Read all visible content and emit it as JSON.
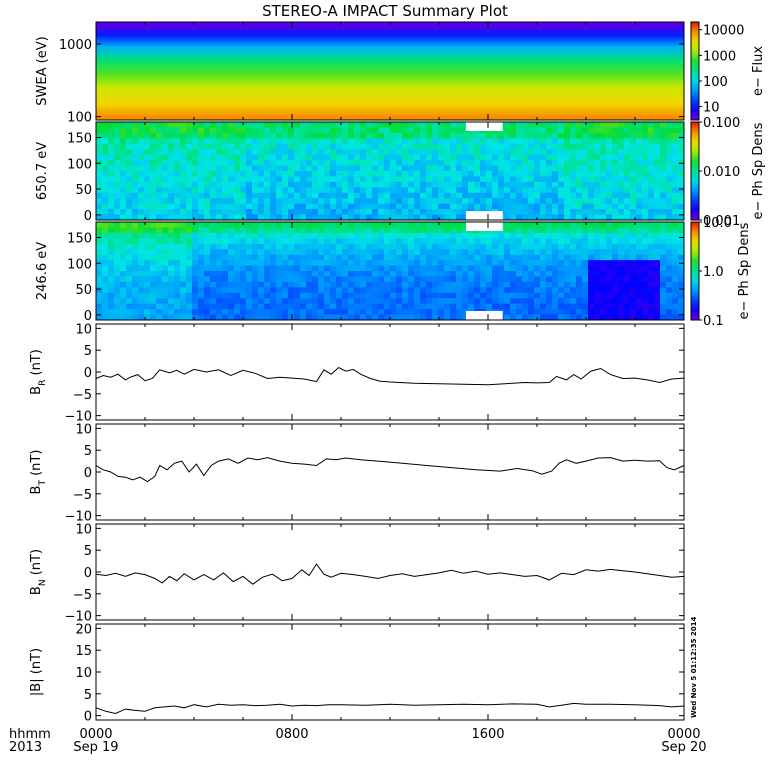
{
  "title": "STEREO-A IMPACT Summary Plot",
  "footer": {
    "row1_label": "hhmm",
    "row2_label": "2013",
    "xticks": [
      {
        "t": 0,
        "top": "0000",
        "bottom": "Sep 19"
      },
      {
        "t": 8,
        "top": "0800",
        "bottom": ""
      },
      {
        "t": 16,
        "top": "1600",
        "bottom": ""
      },
      {
        "t": 24,
        "top": "0000",
        "bottom": "Sep 20"
      }
    ],
    "timestamp": "Wed Nov 5 01:12:35 2014"
  },
  "colors": {
    "frame": "#000000",
    "trace": "#000000",
    "gap": "#ffffff"
  },
  "chart_data": [
    {
      "id": "swea",
      "type": "heatmap",
      "ylabel": "SWEA (eV)",
      "yscale": "log",
      "ylim": [
        90,
        2000
      ],
      "yticks": [
        {
          "v": 1000,
          "label": "1000"
        },
        {
          "v": 100,
          "label": "100"
        }
      ],
      "colorbar": {
        "label": "e− Flux",
        "scale": "log",
        "range": [
          3,
          20000
        ],
        "ticks": [
          {
            "v": 10000,
            "label": "10000"
          },
          {
            "v": 1000,
            "label": "1000"
          },
          {
            "v": 100,
            "label": "100"
          },
          {
            "v": 10,
            "label": "10"
          }
        ]
      },
      "description_bands_ev_to_flux": [
        [
          1800,
          4
        ],
        [
          1300,
          12
        ],
        [
          900,
          60
        ],
        [
          600,
          300
        ],
        [
          400,
          800
        ],
        [
          250,
          2000
        ],
        [
          150,
          4000
        ],
        [
          100,
          8000
        ]
      ]
    },
    {
      "id": "pad650",
      "type": "heatmap",
      "ylabel": "650.7 eV",
      "yscale": "linear",
      "ylim": [
        -10,
        180
      ],
      "yticks": [
        {
          "v": 150,
          "label": "150"
        },
        {
          "v": 100,
          "label": "100"
        },
        {
          "v": 50,
          "label": "50"
        },
        {
          "v": 0,
          "label": "0"
        }
      ],
      "colorbar": {
        "label": "e− Ph Sp Dens",
        "scale": "log",
        "range": [
          0.001,
          0.1
        ],
        "ticks": [
          {
            "v": 0.1,
            "label": "0.100"
          },
          {
            "v": 0.01,
            "label": "0.010"
          },
          {
            "v": 0.001,
            "label": "0.001"
          }
        ]
      },
      "gaps_hours": [
        [
          15.1,
          16.6
        ]
      ]
    },
    {
      "id": "pad246",
      "type": "heatmap",
      "ylabel": "246.6 eV",
      "yscale": "linear",
      "ylim": [
        -10,
        180
      ],
      "yticks": [
        {
          "v": 150,
          "label": "150"
        },
        {
          "v": 100,
          "label": "100"
        },
        {
          "v": 50,
          "label": "50"
        },
        {
          "v": 0,
          "label": "0"
        }
      ],
      "colorbar": {
        "label": "e− Ph Sp Dens",
        "scale": "log",
        "range": [
          0.1,
          10.0
        ],
        "ticks": [
          {
            "v": 10,
            "label": "10.0"
          },
          {
            "v": 1,
            "label": "1.0"
          },
          {
            "v": 0.1,
            "label": "0.1"
          }
        ]
      },
      "gaps_hours": [
        [
          15.1,
          16.6
        ]
      ]
    },
    {
      "id": "br",
      "type": "line",
      "ylabel": "B_R (nT)",
      "ylabel_main": "B",
      "ylabel_sub": "R",
      "ylabel_unit": "(nT)",
      "ylim": [
        -11,
        11
      ],
      "yticks": [
        {
          "v": 10,
          "label": "10"
        },
        {
          "v": 5,
          "label": "5"
        },
        {
          "v": 0,
          "label": "0"
        },
        {
          "v": -5,
          "label": "−5"
        },
        {
          "v": -10,
          "label": "−10"
        }
      ],
      "x": [
        0,
        0.3,
        0.6,
        0.9,
        1.2,
        1.4,
        1.7,
        2.0,
        2.3,
        2.6,
        3.0,
        3.3,
        3.6,
        4.0,
        4.5,
        5.0,
        5.5,
        6.0,
        6.5,
        7.0,
        7.5,
        8.0,
        8.5,
        9.0,
        9.3,
        9.6,
        9.9,
        10.2,
        10.5,
        10.8,
        11.2,
        11.6,
        12.0,
        13.0,
        14.0,
        15.0,
        16.0,
        17.0,
        17.5,
        18.0,
        18.5,
        18.8,
        19.2,
        19.5,
        19.8,
        20.2,
        20.6,
        21.0,
        21.5,
        22.0,
        22.5,
        23.0,
        23.5,
        24.0
      ],
      "y": [
        -1.5,
        -0.8,
        -1.2,
        -0.5,
        -1.8,
        -1.2,
        -0.6,
        -2.0,
        -1.5,
        0.5,
        -0.2,
        0.4,
        -0.5,
        0.6,
        0.0,
        0.5,
        -0.8,
        0.4,
        -0.3,
        -1.5,
        -1.2,
        -1.4,
        -1.6,
        -2.2,
        0.5,
        -0.5,
        1.0,
        0.2,
        0.6,
        -0.5,
        -1.5,
        -2.1,
        -2.3,
        -2.6,
        -2.7,
        -2.8,
        -2.9,
        -2.6,
        -2.4,
        -2.5,
        -2.4,
        -1.0,
        -1.8,
        -0.6,
        -1.6,
        0.2,
        0.8,
        -0.6,
        -1.5,
        -1.4,
        -1.8,
        -2.4,
        -1.6,
        -1.4
      ]
    },
    {
      "id": "bt",
      "type": "line",
      "ylabel": "B_T (nT)",
      "ylabel_main": "B",
      "ylabel_sub": "T",
      "ylabel_unit": "(nT)",
      "ylim": [
        -11,
        11
      ],
      "yticks": [
        {
          "v": 10,
          "label": "10"
        },
        {
          "v": 5,
          "label": "5"
        },
        {
          "v": 0,
          "label": "0"
        },
        {
          "v": -5,
          "label": "−5"
        },
        {
          "v": -10,
          "label": "−10"
        }
      ],
      "x": [
        0,
        0.3,
        0.6,
        0.9,
        1.2,
        1.5,
        1.8,
        2.1,
        2.4,
        2.6,
        2.9,
        3.2,
        3.5,
        3.8,
        4.1,
        4.4,
        4.7,
        5.0,
        5.4,
        5.8,
        6.2,
        6.6,
        7.0,
        7.5,
        8.0,
        8.5,
        9.0,
        9.4,
        9.8,
        10.2,
        10.8,
        11.5,
        12.5,
        13.5,
        14.5,
        15.5,
        16.5,
        17.2,
        17.8,
        18.2,
        18.6,
        18.9,
        19.2,
        19.6,
        20.0,
        20.5,
        21.0,
        21.5,
        22.0,
        22.5,
        23.0,
        23.3,
        23.6,
        24.0
      ],
      "y": [
        1.5,
        0.5,
        0.0,
        -1.0,
        -1.2,
        -1.8,
        -1.2,
        -2.2,
        -1.0,
        1.5,
        0.5,
        2.0,
        2.5,
        0.0,
        1.8,
        -0.8,
        1.5,
        2.5,
        3.0,
        2.0,
        3.2,
        2.8,
        3.3,
        2.5,
        2.0,
        1.8,
        1.5,
        3.0,
        2.8,
        3.2,
        2.8,
        2.5,
        2.0,
        1.5,
        1.0,
        0.5,
        0.2,
        0.8,
        0.3,
        -0.5,
        0.2,
        2.0,
        2.8,
        2.0,
        2.5,
        3.2,
        3.3,
        2.5,
        2.7,
        2.5,
        2.6,
        1.0,
        0.5,
        1.5
      ]
    },
    {
      "id": "bn",
      "type": "line",
      "ylabel": "B_N (nT)",
      "ylabel_main": "B",
      "ylabel_sub": "N",
      "ylabel_unit": "(nT)",
      "ylim": [
        -11,
        11
      ],
      "yticks": [
        {
          "v": 10,
          "label": "10"
        },
        {
          "v": 5,
          "label": "5"
        },
        {
          "v": 0,
          "label": "0"
        },
        {
          "v": -5,
          "label": "−5"
        },
        {
          "v": -10,
          "label": "−10"
        }
      ],
      "x": [
        0,
        0.4,
        0.8,
        1.2,
        1.6,
        2.0,
        2.4,
        2.7,
        3.0,
        3.3,
        3.6,
        4.0,
        4.4,
        4.8,
        5.2,
        5.6,
        6.0,
        6.4,
        6.8,
        7.2,
        7.6,
        8.0,
        8.4,
        8.7,
        9.0,
        9.3,
        9.6,
        10.0,
        10.5,
        11.0,
        11.5,
        12.0,
        12.5,
        13.0,
        13.5,
        14.0,
        14.5,
        15.0,
        15.5,
        16.0,
        16.5,
        17.0,
        17.5,
        18.0,
        18.5,
        19.0,
        19.5,
        20.0,
        20.5,
        21.0,
        21.5,
        22.0,
        22.5,
        23.0,
        23.5,
        24.0
      ],
      "y": [
        -0.5,
        -0.8,
        -0.3,
        -1.0,
        -0.2,
        -0.6,
        -1.5,
        -2.5,
        -1.0,
        -2.0,
        -0.4,
        -1.8,
        -0.6,
        -1.8,
        -0.2,
        -2.2,
        -1.0,
        -2.8,
        -1.2,
        -0.5,
        -2.0,
        -1.5,
        0.5,
        -0.8,
        1.8,
        -0.5,
        -1.2,
        -0.3,
        -0.6,
        -1.0,
        -1.5,
        -0.8,
        -0.4,
        -1.0,
        -0.6,
        -0.2,
        0.4,
        -0.3,
        0.2,
        -0.5,
        -0.2,
        -0.6,
        -1.0,
        -0.8,
        -1.8,
        -0.3,
        -0.6,
        0.5,
        0.2,
        0.6,
        0.3,
        0.0,
        -0.4,
        -0.8,
        -1.2,
        -1.0
      ]
    },
    {
      "id": "bmag",
      "type": "line",
      "ylabel": "|B| (nT)",
      "ylabel_main": "|B|",
      "ylabel_sub": "",
      "ylabel_unit": "(nT)",
      "ylim": [
        -1,
        21
      ],
      "yticks": [
        {
          "v": 20,
          "label": "20"
        },
        {
          "v": 15,
          "label": "15"
        },
        {
          "v": 10,
          "label": "10"
        },
        {
          "v": 5,
          "label": "5"
        },
        {
          "v": 0,
          "label": "0"
        }
      ],
      "x": [
        0,
        0.4,
        0.8,
        1.2,
        1.6,
        2.0,
        2.4,
        2.8,
        3.2,
        3.6,
        4.0,
        4.5,
        5.0,
        5.5,
        6.0,
        6.5,
        7.0,
        7.5,
        8.0,
        8.5,
        9.0,
        9.5,
        10.0,
        11.0,
        12.0,
        13.0,
        14.0,
        15.0,
        16.0,
        17.0,
        18.0,
        18.5,
        19.0,
        19.5,
        20.0,
        21.0,
        22.0,
        23.0,
        23.5,
        24.0
      ],
      "y": [
        1.8,
        1.0,
        0.5,
        1.5,
        1.2,
        1.0,
        1.8,
        2.0,
        2.2,
        1.8,
        2.5,
        2.0,
        2.6,
        2.4,
        2.5,
        2.3,
        2.4,
        2.6,
        2.2,
        2.4,
        2.3,
        2.5,
        2.5,
        2.4,
        2.6,
        2.4,
        2.5,
        2.6,
        2.5,
        2.7,
        2.6,
        2.0,
        2.4,
        2.8,
        2.6,
        2.6,
        2.5,
        2.3,
        2.0,
        2.2
      ]
    }
  ]
}
